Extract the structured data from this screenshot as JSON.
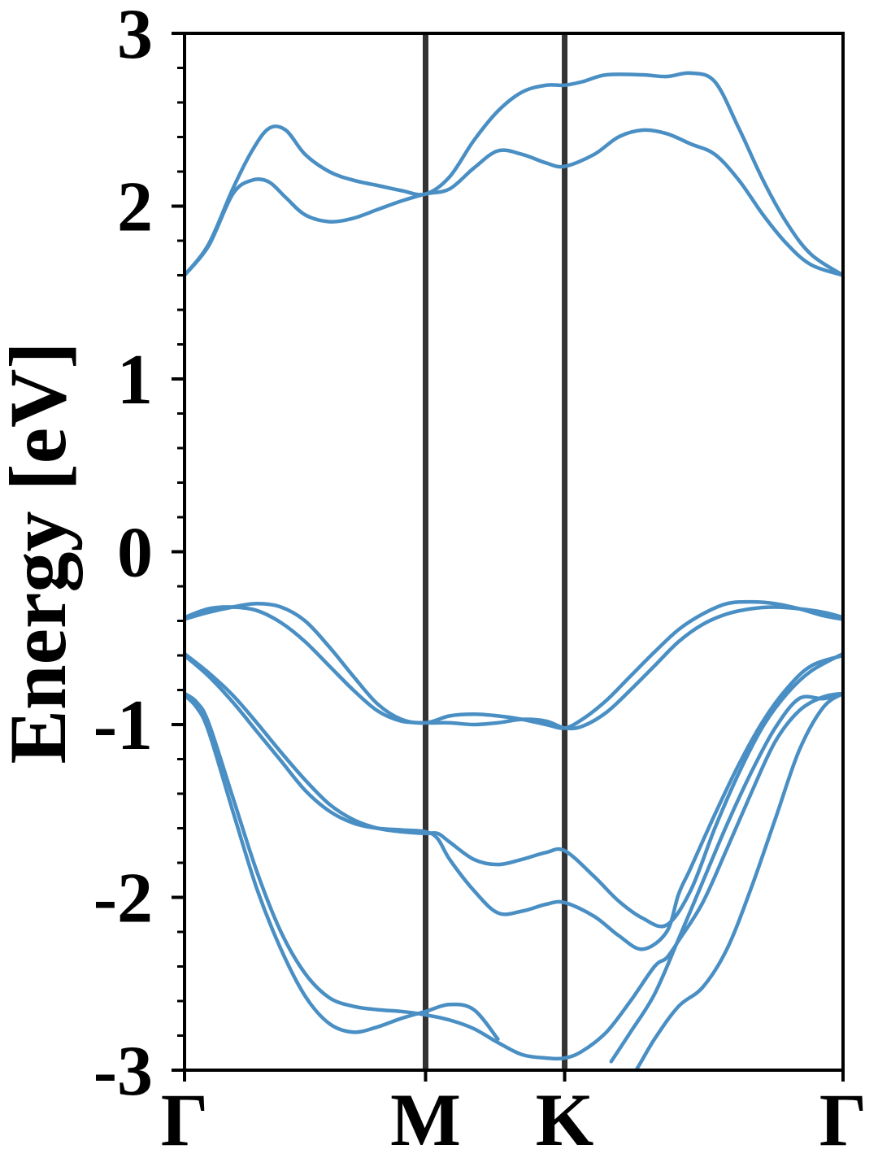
{
  "chart_data": {
    "type": "line",
    "title": "",
    "ylabel": "Energy [eV]",
    "xlabel": "",
    "ylim": [
      -3,
      3
    ],
    "yticks": [
      "-3",
      "-2",
      "-1",
      "0",
      "1",
      "2",
      "3"
    ],
    "high_symmetry_points": [
      {
        "label": "Γ",
        "k": 0
      },
      {
        "label": "M",
        "k": 1.0
      },
      {
        "label": "K",
        "k": 1.577
      },
      {
        "label": "Γ",
        "k": 2.732
      }
    ],
    "line_color": "#4a8fc4",
    "divider_color": "#333333",
    "series": [
      {
        "x": [
          0,
          0.1,
          0.2,
          0.28,
          0.35,
          0.42,
          0.5,
          0.6,
          0.7,
          0.8,
          0.9,
          1.0,
          1.1,
          1.2,
          1.3,
          1.4,
          1.5,
          1.577,
          1.65,
          1.75,
          1.9,
          2.0,
          2.1,
          2.2,
          2.3,
          2.4,
          2.5,
          2.6,
          2.732
        ],
        "y": [
          1.6,
          1.78,
          2.1,
          2.32,
          2.45,
          2.44,
          2.3,
          2.2,
          2.15,
          2.12,
          2.09,
          2.07,
          2.17,
          2.38,
          2.55,
          2.66,
          2.7,
          2.7,
          2.72,
          2.76,
          2.76,
          2.75,
          2.77,
          2.72,
          2.45,
          2.15,
          1.9,
          1.72,
          1.6
        ]
      },
      {
        "x": [
          0,
          0.1,
          0.2,
          0.28,
          0.35,
          0.42,
          0.5,
          0.6,
          0.7,
          0.8,
          0.9,
          1.0,
          1.1,
          1.2,
          1.3,
          1.4,
          1.5,
          1.577,
          1.7,
          1.8,
          1.9,
          2.0,
          2.1,
          2.2,
          2.3,
          2.4,
          2.5,
          2.6,
          2.732
        ],
        "y": [
          1.6,
          1.77,
          2.07,
          2.15,
          2.14,
          2.05,
          1.95,
          1.91,
          1.93,
          1.98,
          2.03,
          2.07,
          2.1,
          2.22,
          2.32,
          2.3,
          2.25,
          2.23,
          2.3,
          2.4,
          2.44,
          2.42,
          2.36,
          2.3,
          2.15,
          1.95,
          1.78,
          1.66,
          1.6
        ]
      },
      {
        "x": [
          0,
          0.1,
          0.2,
          0.3,
          0.4,
          0.5,
          0.6,
          0.7,
          0.8,
          0.9,
          1.0,
          1.1,
          1.2,
          1.3,
          1.4,
          1.5,
          1.577,
          1.65,
          1.75,
          1.85,
          1.95,
          2.05,
          2.15,
          2.25,
          2.35,
          2.45,
          2.55,
          2.65,
          2.732
        ],
        "y": [
          -0.38,
          -0.33,
          -0.32,
          -0.34,
          -0.41,
          -0.52,
          -0.66,
          -0.8,
          -0.92,
          -0.98,
          -0.99,
          -0.99,
          -1.0,
          -0.99,
          -0.97,
          -0.98,
          -1.02,
          -1.01,
          -0.93,
          -0.8,
          -0.66,
          -0.52,
          -0.42,
          -0.36,
          -0.33,
          -0.32,
          -0.33,
          -0.35,
          -0.38
        ]
      },
      {
        "x": [
          0,
          0.1,
          0.2,
          0.3,
          0.4,
          0.5,
          0.6,
          0.7,
          0.8,
          0.9,
          1.0,
          1.1,
          1.2,
          1.3,
          1.4,
          1.5,
          1.577,
          1.65,
          1.75,
          1.85,
          1.95,
          2.05,
          2.15,
          2.25,
          2.35,
          2.45,
          2.55,
          2.65,
          2.732
        ],
        "y": [
          -0.39,
          -0.35,
          -0.32,
          -0.3,
          -0.32,
          -0.4,
          -0.55,
          -0.72,
          -0.88,
          -0.97,
          -0.99,
          -0.95,
          -0.94,
          -0.95,
          -0.97,
          -1.0,
          -1.02,
          -0.97,
          -0.86,
          -0.72,
          -0.58,
          -0.45,
          -0.36,
          -0.3,
          -0.29,
          -0.3,
          -0.33,
          -0.37,
          -0.39
        ]
      },
      {
        "x": [
          0,
          0.1,
          0.2,
          0.3,
          0.4,
          0.5,
          0.6,
          0.7,
          0.8,
          0.9,
          1.0,
          1.05,
          1.1,
          1.2,
          1.3,
          1.4,
          1.5,
          1.577,
          1.7,
          1.8,
          1.9,
          2.0,
          2.1,
          2.2,
          2.3,
          2.4,
          2.5,
          2.6,
          2.732
        ],
        "y": [
          -0.59,
          -0.7,
          -0.83,
          -0.99,
          -1.16,
          -1.32,
          -1.46,
          -1.55,
          -1.6,
          -1.62,
          -1.63,
          -1.63,
          -1.68,
          -1.78,
          -1.81,
          -1.78,
          -1.74,
          -1.73,
          -1.88,
          -2.02,
          -2.12,
          -2.16,
          -1.96,
          -1.6,
          -1.28,
          -1.01,
          -0.82,
          -0.69,
          -0.59
        ]
      },
      {
        "x": [
          0,
          0.1,
          0.2,
          0.3,
          0.4,
          0.5,
          0.6,
          0.7,
          0.8,
          0.9,
          1.0,
          1.05,
          1.1,
          1.2,
          1.3,
          1.4,
          1.5,
          1.577,
          1.7,
          1.8,
          1.9,
          2.0,
          2.05,
          2.1,
          2.2,
          2.3,
          2.4,
          2.5,
          2.6,
          2.732
        ],
        "y": [
          -0.6,
          -0.72,
          -0.87,
          -1.04,
          -1.21,
          -1.38,
          -1.5,
          -1.57,
          -1.6,
          -1.61,
          -1.62,
          -1.66,
          -1.78,
          -1.96,
          -2.09,
          -2.08,
          -2.04,
          -2.03,
          -2.11,
          -2.22,
          -2.3,
          -2.2,
          -1.98,
          -1.83,
          -1.52,
          -1.23,
          -0.98,
          -0.79,
          -0.66,
          -0.6
        ]
      },
      {
        "x": [
          0,
          0.05,
          0.1,
          0.2,
          0.3,
          0.4,
          0.5,
          0.6,
          0.7,
          0.8,
          0.9,
          1.0,
          1.1,
          1.2,
          1.3,
          1.4,
          1.5,
          1.577,
          1.65,
          1.75,
          1.85,
          1.95,
          2.0,
          2.05,
          2.15,
          2.25,
          2.35,
          2.45,
          2.55,
          2.65,
          2.732
        ],
        "y": [
          -0.82,
          -0.87,
          -0.99,
          -1.42,
          -1.85,
          -2.2,
          -2.44,
          -2.58,
          -2.63,
          -2.65,
          -2.66,
          -2.68,
          -2.71,
          -2.76,
          -2.84,
          -2.91,
          -2.93,
          -2.93,
          -2.89,
          -2.78,
          -2.6,
          -2.4,
          -2.35,
          -2.25,
          -2.03,
          -1.72,
          -1.4,
          -1.1,
          -0.92,
          -0.84,
          -0.82
        ]
      },
      {
        "x": [
          0,
          0.05,
          0.1,
          0.2,
          0.3,
          0.4,
          0.5,
          0.6,
          0.7,
          0.8,
          0.9,
          1.0,
          1.1,
          1.2,
          1.3
        ],
        "y": [
          -0.83,
          -0.9,
          -1.04,
          -1.5,
          -1.95,
          -2.3,
          -2.57,
          -2.73,
          -2.78,
          -2.75,
          -2.7,
          -2.66,
          -2.62,
          -2.65,
          -2.82
        ]
      },
      {
        "x": [
          1.42,
          1.52,
          1.6,
          1.75,
          1.85,
          1.95,
          2.05,
          2.15,
          2.25,
          2.35,
          2.45,
          2.55,
          2.65,
          2.732
        ],
        "y": [
          -3.05,
          -3.2,
          -3.3,
          -3.2,
          -3.05,
          -2.82,
          -2.63,
          -2.52,
          -2.3,
          -1.95,
          -1.55,
          -1.15,
          -0.9,
          -0.82
        ]
      },
      {
        "x": [
          1.77,
          1.85,
          1.95,
          2.05,
          2.15,
          2.25,
          2.35,
          2.45,
          2.55,
          2.65,
          2.732
        ],
        "y": [
          -2.95,
          -2.78,
          -2.56,
          -2.24,
          -1.91,
          -1.58,
          -1.28,
          -1.02,
          -0.85,
          -0.85,
          -0.82
        ]
      }
    ]
  }
}
